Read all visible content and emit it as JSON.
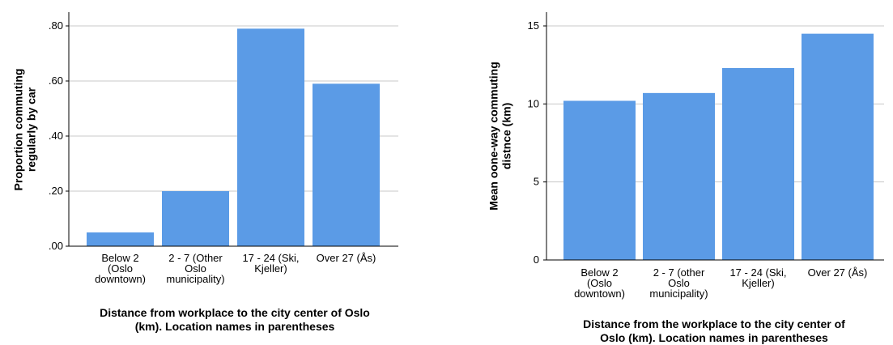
{
  "colors": {
    "bar": "#5b9be6",
    "grid": "#c8c8c8",
    "axis": "#000000"
  },
  "chart_data": [
    {
      "type": "bar",
      "title": "",
      "categories": [
        [
          "Below 2",
          "(Oslo",
          "downtown)"
        ],
        [
          "2 - 7 (Other",
          "Oslo",
          "municipality)"
        ],
        [
          "17 - 24 (Ski,",
          "Kjeller)"
        ],
        [
          "Over 27 (Ås)"
        ]
      ],
      "values": [
        0.05,
        0.2,
        0.79,
        0.59
      ],
      "ylim": [
        0,
        0.8
      ],
      "yticks": [
        0,
        0.2,
        0.4,
        0.6,
        0.8
      ],
      "ytick_labels": [
        ".00",
        ".20",
        ".40",
        ".60",
        ".80"
      ],
      "ylabel": [
        "Proportion commuting",
        "regularly by car"
      ],
      "xlabel": [
        "Distance from workplace to the city center of Oslo",
        "(km). Location names in parentheses"
      ],
      "grid": true
    },
    {
      "type": "bar",
      "title": "",
      "categories": [
        [
          "Below 2",
          "(Oslo",
          "downtown)"
        ],
        [
          "2 - 7 (other",
          "Oslo",
          "municipality)"
        ],
        [
          "17 - 24 (Ski,",
          "Kjeller)"
        ],
        [
          "Over 27 (Ås)"
        ]
      ],
      "values": [
        10.2,
        10.7,
        12.3,
        14.5
      ],
      "ylim": [
        0,
        15
      ],
      "yticks": [
        0,
        5,
        10,
        15
      ],
      "ytick_labels": [
        "0",
        "5",
        "10",
        "15"
      ],
      "ylabel": [
        "Mean oone-way commuting",
        "distnce (km)"
      ],
      "xlabel": [
        "Distance from the workplace to the city center of",
        "Oslo (km). Location names in parentheses"
      ],
      "grid": true
    }
  ]
}
